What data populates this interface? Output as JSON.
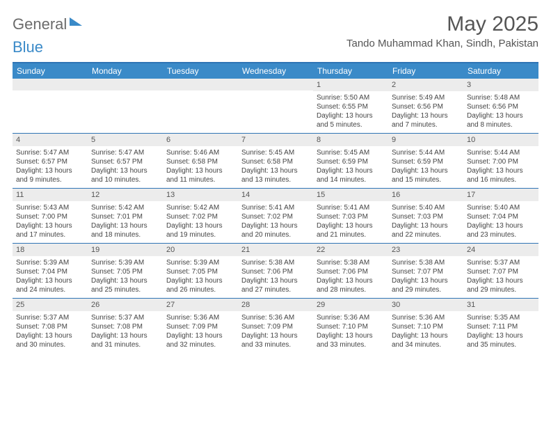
{
  "brand": {
    "part1": "General",
    "part2": "Blue"
  },
  "title": "May 2025",
  "location": "Tando Muhammad Khan, Sindh, Pakistan",
  "day_headers": [
    "Sunday",
    "Monday",
    "Tuesday",
    "Wednesday",
    "Thursday",
    "Friday",
    "Saturday"
  ],
  "colors": {
    "header_bg": "#3a8ac8",
    "border": "#2e74b5",
    "daynum_bg": "#ececec",
    "text": "#444444",
    "logo_gray": "#6b6b6b"
  },
  "weeks": [
    [
      {
        "n": "",
        "sunrise": "",
        "sunset": "",
        "daylight": ""
      },
      {
        "n": "",
        "sunrise": "",
        "sunset": "",
        "daylight": ""
      },
      {
        "n": "",
        "sunrise": "",
        "sunset": "",
        "daylight": ""
      },
      {
        "n": "",
        "sunrise": "",
        "sunset": "",
        "daylight": ""
      },
      {
        "n": "1",
        "sunrise": "Sunrise: 5:50 AM",
        "sunset": "Sunset: 6:55 PM",
        "daylight": "Daylight: 13 hours and 5 minutes."
      },
      {
        "n": "2",
        "sunrise": "Sunrise: 5:49 AM",
        "sunset": "Sunset: 6:56 PM",
        "daylight": "Daylight: 13 hours and 7 minutes."
      },
      {
        "n": "3",
        "sunrise": "Sunrise: 5:48 AM",
        "sunset": "Sunset: 6:56 PM",
        "daylight": "Daylight: 13 hours and 8 minutes."
      }
    ],
    [
      {
        "n": "4",
        "sunrise": "Sunrise: 5:47 AM",
        "sunset": "Sunset: 6:57 PM",
        "daylight": "Daylight: 13 hours and 9 minutes."
      },
      {
        "n": "5",
        "sunrise": "Sunrise: 5:47 AM",
        "sunset": "Sunset: 6:57 PM",
        "daylight": "Daylight: 13 hours and 10 minutes."
      },
      {
        "n": "6",
        "sunrise": "Sunrise: 5:46 AM",
        "sunset": "Sunset: 6:58 PM",
        "daylight": "Daylight: 13 hours and 11 minutes."
      },
      {
        "n": "7",
        "sunrise": "Sunrise: 5:45 AM",
        "sunset": "Sunset: 6:58 PM",
        "daylight": "Daylight: 13 hours and 13 minutes."
      },
      {
        "n": "8",
        "sunrise": "Sunrise: 5:45 AM",
        "sunset": "Sunset: 6:59 PM",
        "daylight": "Daylight: 13 hours and 14 minutes."
      },
      {
        "n": "9",
        "sunrise": "Sunrise: 5:44 AM",
        "sunset": "Sunset: 6:59 PM",
        "daylight": "Daylight: 13 hours and 15 minutes."
      },
      {
        "n": "10",
        "sunrise": "Sunrise: 5:44 AM",
        "sunset": "Sunset: 7:00 PM",
        "daylight": "Daylight: 13 hours and 16 minutes."
      }
    ],
    [
      {
        "n": "11",
        "sunrise": "Sunrise: 5:43 AM",
        "sunset": "Sunset: 7:00 PM",
        "daylight": "Daylight: 13 hours and 17 minutes."
      },
      {
        "n": "12",
        "sunrise": "Sunrise: 5:42 AM",
        "sunset": "Sunset: 7:01 PM",
        "daylight": "Daylight: 13 hours and 18 minutes."
      },
      {
        "n": "13",
        "sunrise": "Sunrise: 5:42 AM",
        "sunset": "Sunset: 7:02 PM",
        "daylight": "Daylight: 13 hours and 19 minutes."
      },
      {
        "n": "14",
        "sunrise": "Sunrise: 5:41 AM",
        "sunset": "Sunset: 7:02 PM",
        "daylight": "Daylight: 13 hours and 20 minutes."
      },
      {
        "n": "15",
        "sunrise": "Sunrise: 5:41 AM",
        "sunset": "Sunset: 7:03 PM",
        "daylight": "Daylight: 13 hours and 21 minutes."
      },
      {
        "n": "16",
        "sunrise": "Sunrise: 5:40 AM",
        "sunset": "Sunset: 7:03 PM",
        "daylight": "Daylight: 13 hours and 22 minutes."
      },
      {
        "n": "17",
        "sunrise": "Sunrise: 5:40 AM",
        "sunset": "Sunset: 7:04 PM",
        "daylight": "Daylight: 13 hours and 23 minutes."
      }
    ],
    [
      {
        "n": "18",
        "sunrise": "Sunrise: 5:39 AM",
        "sunset": "Sunset: 7:04 PM",
        "daylight": "Daylight: 13 hours and 24 minutes."
      },
      {
        "n": "19",
        "sunrise": "Sunrise: 5:39 AM",
        "sunset": "Sunset: 7:05 PM",
        "daylight": "Daylight: 13 hours and 25 minutes."
      },
      {
        "n": "20",
        "sunrise": "Sunrise: 5:39 AM",
        "sunset": "Sunset: 7:05 PM",
        "daylight": "Daylight: 13 hours and 26 minutes."
      },
      {
        "n": "21",
        "sunrise": "Sunrise: 5:38 AM",
        "sunset": "Sunset: 7:06 PM",
        "daylight": "Daylight: 13 hours and 27 minutes."
      },
      {
        "n": "22",
        "sunrise": "Sunrise: 5:38 AM",
        "sunset": "Sunset: 7:06 PM",
        "daylight": "Daylight: 13 hours and 28 minutes."
      },
      {
        "n": "23",
        "sunrise": "Sunrise: 5:38 AM",
        "sunset": "Sunset: 7:07 PM",
        "daylight": "Daylight: 13 hours and 29 minutes."
      },
      {
        "n": "24",
        "sunrise": "Sunrise: 5:37 AM",
        "sunset": "Sunset: 7:07 PM",
        "daylight": "Daylight: 13 hours and 29 minutes."
      }
    ],
    [
      {
        "n": "25",
        "sunrise": "Sunrise: 5:37 AM",
        "sunset": "Sunset: 7:08 PM",
        "daylight": "Daylight: 13 hours and 30 minutes."
      },
      {
        "n": "26",
        "sunrise": "Sunrise: 5:37 AM",
        "sunset": "Sunset: 7:08 PM",
        "daylight": "Daylight: 13 hours and 31 minutes."
      },
      {
        "n": "27",
        "sunrise": "Sunrise: 5:36 AM",
        "sunset": "Sunset: 7:09 PM",
        "daylight": "Daylight: 13 hours and 32 minutes."
      },
      {
        "n": "28",
        "sunrise": "Sunrise: 5:36 AM",
        "sunset": "Sunset: 7:09 PM",
        "daylight": "Daylight: 13 hours and 33 minutes."
      },
      {
        "n": "29",
        "sunrise": "Sunrise: 5:36 AM",
        "sunset": "Sunset: 7:10 PM",
        "daylight": "Daylight: 13 hours and 33 minutes."
      },
      {
        "n": "30",
        "sunrise": "Sunrise: 5:36 AM",
        "sunset": "Sunset: 7:10 PM",
        "daylight": "Daylight: 13 hours and 34 minutes."
      },
      {
        "n": "31",
        "sunrise": "Sunrise: 5:35 AM",
        "sunset": "Sunset: 7:11 PM",
        "daylight": "Daylight: 13 hours and 35 minutes."
      }
    ]
  ]
}
